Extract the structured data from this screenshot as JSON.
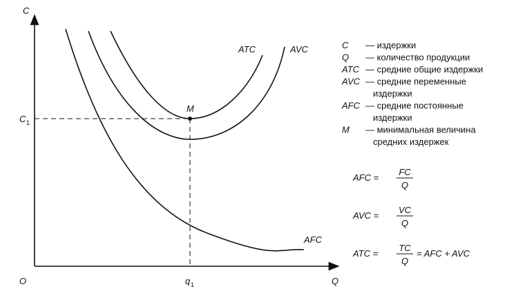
{
  "axes": {
    "y_label": "C",
    "x_label": "Q",
    "origin": "O",
    "c1": "C",
    "c1_sub": "1",
    "q1": "q",
    "q1_sub": "1"
  },
  "point": "M",
  "curves": {
    "atc": "ATC",
    "avc": "AVC",
    "afc": "AFC"
  },
  "legend": [
    {
      "symbol": "C",
      "lines": [
        "— издержки"
      ]
    },
    {
      "symbol": "Q",
      "lines": [
        "— количество продукции"
      ]
    },
    {
      "symbol": "ATC",
      "lines": [
        "— средние общие издержки"
      ]
    },
    {
      "symbol": "AVC",
      "lines": [
        "— средние переменные",
        "издержки"
      ]
    },
    {
      "symbol": "AFC",
      "lines": [
        "— средние постоянные",
        "издержки"
      ]
    },
    {
      "symbol": "M",
      "lines": [
        "— минимальная величина",
        "средних издержек"
      ]
    }
  ],
  "formulas": [
    {
      "lhs": "AFC =",
      "num": "FC",
      "den": "Q"
    },
    {
      "lhs": "AVC =",
      "num": "VC",
      "den": "Q"
    },
    {
      "lhs": "ATC =",
      "num": "TC",
      "den": "Q",
      "rhs": "= AFC + AVC"
    }
  ]
}
